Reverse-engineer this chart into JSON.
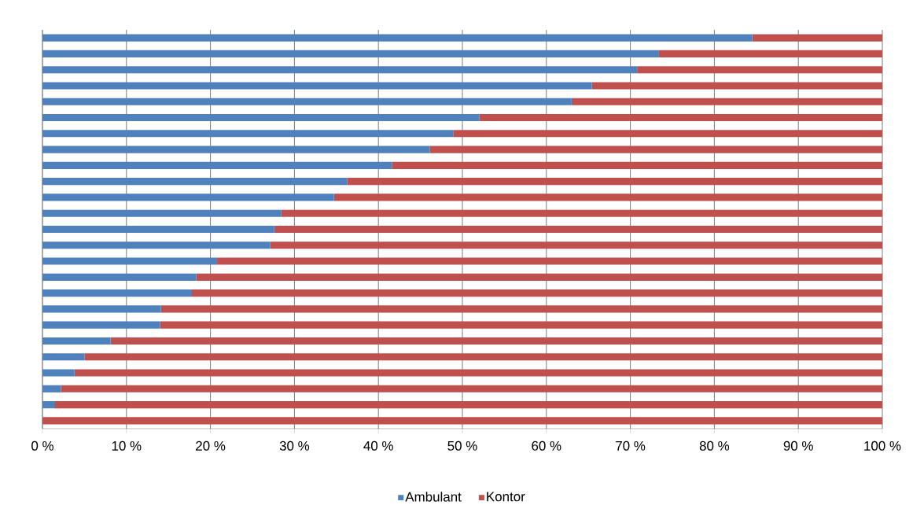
{
  "chart_data": {
    "type": "bar",
    "orientation": "horizontal",
    "stacked": true,
    "categories": [
      null,
      null,
      null,
      null,
      null,
      null,
      null,
      null,
      null,
      null,
      null,
      null,
      null,
      null,
      null,
      null,
      null,
      null,
      null,
      null,
      null,
      null,
      null,
      null,
      null
    ],
    "series": [
      {
        "name": "Ambulant",
        "color": "#4f81bd",
        "values": [
          84.5,
          73.4,
          70.8,
          65.4,
          63.0,
          52.0,
          48.9,
          46.1,
          41.6,
          36.3,
          34.7,
          28.4,
          27.6,
          27.1,
          20.7,
          18.3,
          17.7,
          14.1,
          14.0,
          8.1,
          5.0,
          3.8,
          2.2,
          1.4,
          0
        ]
      },
      {
        "name": "Kontor",
        "color": "#c0504d",
        "values": [
          15.5,
          26.6,
          29.2,
          34.6,
          37.0,
          48.0,
          51.1,
          53.9,
          58.4,
          63.7,
          65.3,
          71.6,
          72.4,
          72.9,
          79.3,
          81.7,
          82.3,
          85.9,
          86.0,
          91.9,
          95.0,
          96.2,
          97.8,
          98.6,
          100
        ]
      }
    ],
    "xlim": [
      0,
      100
    ],
    "xticks": [
      {
        "value": 0,
        "label": "0 %"
      },
      {
        "value": 10,
        "label": "10 %"
      },
      {
        "value": 20,
        "label": "20 %"
      },
      {
        "value": 30,
        "label": "30 %"
      },
      {
        "value": 40,
        "label": "40 %"
      },
      {
        "value": 50,
        "label": "50 %"
      },
      {
        "value": 60,
        "label": "60 %"
      },
      {
        "value": 70,
        "label": "70 %"
      },
      {
        "value": 80,
        "label": "80 %"
      },
      {
        "value": 90,
        "label": "90 %"
      },
      {
        "value": 100,
        "label": "100 %"
      }
    ],
    "grid": "x",
    "legend": "bottom"
  }
}
